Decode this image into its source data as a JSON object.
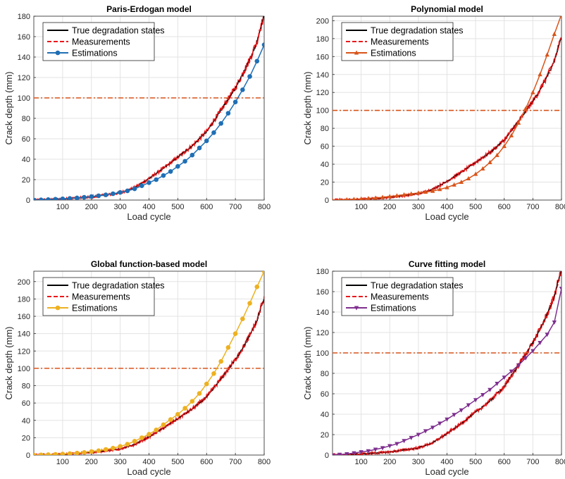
{
  "figure": {
    "panels_count": 4
  },
  "chart_data": [
    {
      "type": "line",
      "title": "Paris-Erdogan model",
      "xlabel": "Load cycle",
      "ylabel": "Crack depth (mm)",
      "xlim": [
        0,
        800
      ],
      "ylim": [
        0,
        180
      ],
      "xticks": [
        100,
        200,
        300,
        400,
        500,
        600,
        700,
        800
      ],
      "yticks": [
        0,
        20,
        40,
        60,
        80,
        100,
        120,
        140,
        160,
        180
      ],
      "threshold": 100,
      "grid": true,
      "legend": {
        "position": "top-left",
        "entries": [
          "True degradation states",
          "Measurements",
          "Estimations"
        ]
      },
      "colors": {
        "truth": "#000000",
        "measurements": "#e8191c",
        "estimations": "#1f6fb5",
        "threshold": "#d9541a"
      },
      "estimation_marker": "circle",
      "series": [
        {
          "name": "True degradation states",
          "x": [
            0,
            50,
            100,
            150,
            200,
            250,
            300,
            350,
            400,
            450,
            500,
            550,
            600,
            650,
            700,
            725,
            750,
            775,
            790,
            800
          ],
          "values": [
            0,
            0.5,
            1,
            2,
            3,
            5,
            7,
            12,
            21,
            31,
            42,
            53,
            67,
            88,
            110,
            123,
            138,
            155,
            172,
            180
          ]
        },
        {
          "name": "Estimations",
          "x": [
            0,
            25,
            50,
            75,
            100,
            125,
            150,
            175,
            200,
            225,
            250,
            275,
            300,
            325,
            350,
            375,
            400,
            425,
            450,
            475,
            500,
            525,
            550,
            575,
            600,
            625,
            650,
            675,
            700,
            725,
            750,
            775,
            800
          ],
          "values": [
            0,
            0.2,
            0.5,
            0.8,
            1.2,
            1.6,
            2.1,
            2.7,
            3.4,
            4.2,
            5.1,
            6.2,
            7.5,
            9,
            11,
            14,
            17,
            20,
            24,
            28,
            33,
            38,
            44,
            51,
            58,
            66,
            75,
            85,
            96,
            108,
            121,
            136,
            152
          ]
        }
      ]
    },
    {
      "type": "line",
      "title": "Polynomial model",
      "xlabel": "Load cycle",
      "ylabel": "Crack depth (mm)",
      "xlim": [
        0,
        800
      ],
      "ylim": [
        0,
        205
      ],
      "xticks": [
        100,
        200,
        300,
        400,
        500,
        600,
        700,
        800
      ],
      "yticks": [
        0,
        20,
        40,
        60,
        80,
        100,
        120,
        140,
        160,
        180,
        200
      ],
      "threshold": 100,
      "grid": true,
      "legend": {
        "position": "top-left",
        "entries": [
          "True degradation states",
          "Measurements",
          "Estimations"
        ]
      },
      "colors": {
        "truth": "#000000",
        "measurements": "#e8191c",
        "estimations": "#d9541a",
        "threshold": "#d9541a"
      },
      "estimation_marker": "triangle-up",
      "series": [
        {
          "name": "True degradation states",
          "x": [
            0,
            50,
            100,
            150,
            200,
            250,
            300,
            350,
            400,
            450,
            500,
            550,
            600,
            650,
            700,
            725,
            750,
            775,
            790,
            800
          ],
          "values": [
            0,
            0.5,
            1,
            2,
            3,
            5,
            7,
            12,
            21,
            31,
            42,
            53,
            67,
            88,
            110,
            123,
            138,
            155,
            172,
            180
          ]
        },
        {
          "name": "Estimations",
          "x": [
            0,
            25,
            50,
            75,
            100,
            125,
            150,
            175,
            200,
            225,
            250,
            275,
            300,
            325,
            350,
            375,
            400,
            425,
            450,
            475,
            500,
            525,
            550,
            575,
            600,
            625,
            650,
            675,
            700,
            725,
            750,
            775,
            800
          ],
          "values": [
            0,
            0.2,
            0.5,
            0.9,
            1.3,
            1.8,
            2.4,
            3.1,
            4,
            4.9,
            6,
            7,
            8,
            9,
            10,
            12,
            14,
            17,
            20,
            24,
            29,
            35,
            42,
            50,
            60,
            72,
            86,
            102,
            120,
            140,
            162,
            185,
            207
          ]
        }
      ]
    },
    {
      "type": "line",
      "title": "Global function-based model",
      "xlabel": "Load cycle",
      "ylabel": "Crack depth (mm)",
      "xlim": [
        0,
        800
      ],
      "ylim": [
        0,
        212
      ],
      "xticks": [
        100,
        200,
        300,
        400,
        500,
        600,
        700,
        800
      ],
      "yticks": [
        0,
        20,
        40,
        60,
        80,
        100,
        120,
        140,
        160,
        180,
        200
      ],
      "threshold": 100,
      "grid": true,
      "legend": {
        "position": "top-left",
        "entries": [
          "True degradation states",
          "Measurements",
          "Estimations"
        ]
      },
      "colors": {
        "truth": "#000000",
        "measurements": "#e8191c",
        "estimations": "#edb120",
        "threshold": "#d9541a"
      },
      "estimation_marker": "circle",
      "series": [
        {
          "name": "True degradation states",
          "x": [
            0,
            50,
            100,
            150,
            200,
            250,
            300,
            350,
            400,
            450,
            500,
            550,
            600,
            650,
            700,
            725,
            750,
            775,
            790,
            800
          ],
          "values": [
            0,
            0.5,
            1,
            2,
            3,
            5,
            7,
            12,
            21,
            31,
            42,
            53,
            67,
            88,
            110,
            123,
            138,
            155,
            172,
            180
          ]
        },
        {
          "name": "Estimations",
          "x": [
            0,
            25,
            50,
            75,
            100,
            125,
            150,
            175,
            200,
            225,
            250,
            275,
            300,
            325,
            350,
            375,
            400,
            425,
            450,
            475,
            500,
            525,
            550,
            575,
            600,
            625,
            650,
            675,
            700,
            725,
            750,
            775,
            800
          ],
          "values": [
            0,
            0.2,
            0.5,
            0.8,
            1.2,
            1.7,
            2.3,
            3,
            4,
            5,
            6.5,
            8,
            10,
            12.5,
            16,
            20,
            24,
            29,
            35,
            41,
            47,
            54,
            62,
            71,
            82,
            94,
            108,
            124,
            140,
            157,
            175,
            194,
            212
          ]
        }
      ]
    },
    {
      "type": "line",
      "title": "Curve fitting model",
      "xlabel": "Load cycle",
      "ylabel": "Crack depth (mm)",
      "xlim": [
        0,
        800
      ],
      "ylim": [
        0,
        180
      ],
      "xticks": [
        100,
        200,
        300,
        400,
        500,
        600,
        700,
        800
      ],
      "yticks": [
        0,
        20,
        40,
        60,
        80,
        100,
        120,
        140,
        160,
        180
      ],
      "threshold": 100,
      "grid": true,
      "legend": {
        "position": "top-left",
        "entries": [
          "True degradation states",
          "Measurements",
          "Estimations"
        ]
      },
      "colors": {
        "truth": "#000000",
        "measurements": "#e8191c",
        "estimations": "#7e2f8e",
        "threshold": "#d9541a"
      },
      "estimation_marker": "triangle-down",
      "series": [
        {
          "name": "True degradation states",
          "x": [
            0,
            50,
            100,
            150,
            200,
            250,
            300,
            350,
            400,
            450,
            500,
            550,
            600,
            650,
            700,
            725,
            750,
            775,
            790,
            800
          ],
          "values": [
            0,
            0.5,
            1,
            2,
            3,
            5,
            7,
            12,
            21,
            31,
            42,
            53,
            67,
            88,
            110,
            123,
            138,
            155,
            172,
            180
          ]
        },
        {
          "name": "Estimations",
          "x": [
            0,
            25,
            50,
            75,
            100,
            125,
            150,
            175,
            200,
            225,
            250,
            275,
            300,
            325,
            350,
            375,
            400,
            425,
            450,
            475,
            500,
            525,
            550,
            575,
            600,
            625,
            650,
            675,
            700,
            725,
            750,
            775,
            800
          ],
          "values": [
            0,
            0.5,
            1,
            2,
            3,
            4,
            5.5,
            7,
            9,
            11,
            14,
            17,
            20,
            23.5,
            27,
            31,
            35,
            39.5,
            44,
            49,
            54,
            59,
            64,
            70,
            76,
            82,
            88,
            95,
            102,
            110,
            118,
            130,
            163
          ]
        }
      ]
    }
  ]
}
